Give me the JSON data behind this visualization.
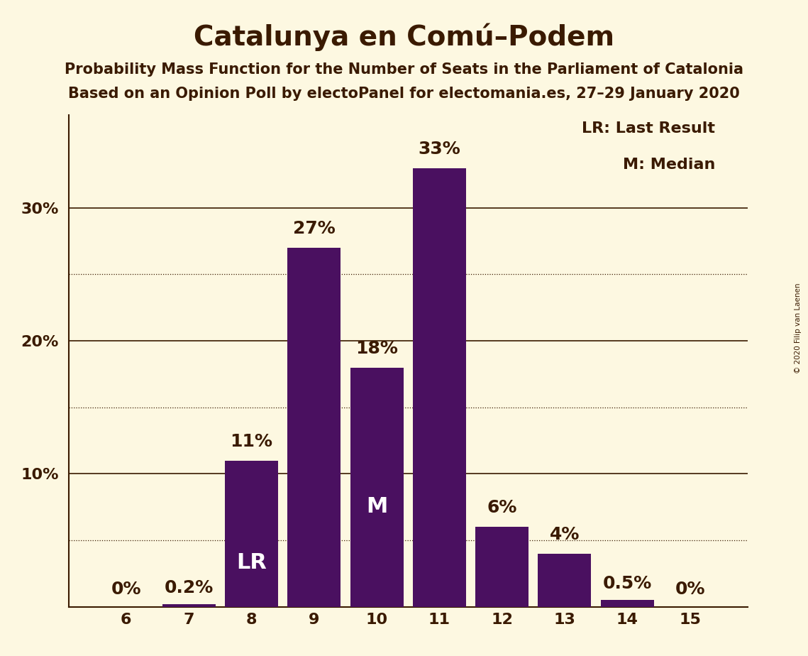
{
  "title": "Catalunya en Comú–Podem",
  "subtitle1": "Probability Mass Function for the Number of Seats in the Parliament of Catalonia",
  "subtitle2": "Based on an Opinion Poll by electoPanel for electomania.es, 27–29 January 2020",
  "copyright": "© 2020 Filip van Laenen",
  "categories": [
    6,
    7,
    8,
    9,
    10,
    11,
    12,
    13,
    14,
    15
  ],
  "values": [
    0.0,
    0.2,
    11.0,
    27.0,
    18.0,
    33.0,
    6.0,
    4.0,
    0.5,
    0.0
  ],
  "bar_color": "#4a1060",
  "background_color": "#fdf8e1",
  "axis_color": "#3a1a00",
  "text_color": "#3a1a00",
  "white": "#ffffff",
  "lr_seat": 8,
  "median_seat": 10,
  "ylim": [
    0,
    37
  ],
  "solid_yticks": [
    10,
    20,
    30
  ],
  "dotted_yticks": [
    5,
    15,
    25
  ],
  "legend_text": [
    "LR: Last Result",
    "M: Median"
  ],
  "title_fontsize": 28,
  "subtitle_fontsize": 15,
  "tick_fontsize": 16,
  "bar_label_fontsize": 18,
  "inside_label_fontsize": 22,
  "legend_fontsize": 16
}
